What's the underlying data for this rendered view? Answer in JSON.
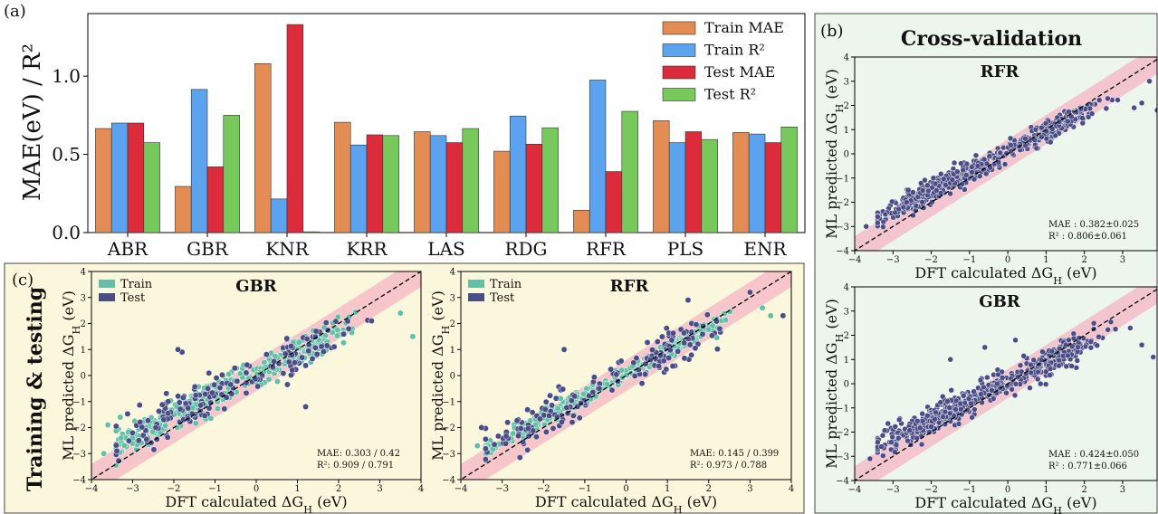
{
  "panels": {
    "a": {
      "label": "(a)",
      "chart_data": {
        "type": "bar",
        "ylabel": "MAE(eV) / R²",
        "ylim": [
          0.0,
          1.4
        ],
        "yticks": [
          "0.0",
          "0.5",
          "1.0"
        ],
        "categories": [
          "ABR",
          "GBR",
          "KNR",
          "KRR",
          "LAS",
          "RDG",
          "RFR",
          "PLS",
          "ENR"
        ],
        "series": [
          {
            "name": "Train MAE",
            "color": "#e38c54",
            "values": [
              0.665,
              0.295,
              1.08,
              0.705,
              0.645,
              0.52,
              0.143,
              0.715,
              0.64
            ]
          },
          {
            "name": "Train R²",
            "color": "#5ba3ee",
            "values": [
              0.7,
              0.915,
              0.215,
              0.56,
              0.62,
              0.745,
              0.975,
              0.575,
              0.63
            ]
          },
          {
            "name": "Test MAE",
            "color": "#dc2b3b",
            "values": [
              0.7,
              0.42,
              1.33,
              0.625,
              0.575,
              0.565,
              0.39,
              0.645,
              0.575
            ]
          },
          {
            "name": "Test R²",
            "color": "#78c95b",
            "values": [
              0.575,
              0.75,
              0.005,
              0.62,
              0.665,
              0.67,
              0.775,
              0.595,
              0.675
            ]
          }
        ],
        "legend_position": "top-right",
        "grid": false
      }
    },
    "b": {
      "label": "(b)",
      "title": "Cross-validation",
      "background": "#edf6ec",
      "subplots": [
        {
          "title": "RFR",
          "xlabel": "DFT calculated ΔG",
          "xlabel_sub": "H",
          "xlabel_tail": " (eV)",
          "ylabel": "ML predicted ΔG",
          "ylabel_sub": "H",
          "ylabel_tail": " (eV)",
          "mae_text": "MAE : 0.382±0.025",
          "r2_text": "R² : 0.806±0.061",
          "chart_data": {
            "type": "scatter",
            "xlim": [
              -4,
              3.9
            ],
            "ylim": [
              -4,
              4
            ],
            "xticks": [
              "-4",
              "-3",
              "-2",
              "-1",
              "0",
              "1",
              "2",
              "3"
            ],
            "yticks": [
              "-4",
              "-3",
              "-2",
              "-1",
              "0",
              "1",
              "2",
              "3",
              "4"
            ],
            "series": [
              {
                "color": "#4b4e86",
                "seed": 11,
                "n": 520,
                "slope": 0.81,
                "noise": 0.22,
                "outliers": [
                  [
                    -3.7,
                    -3.0
                  ],
                  [
                    -3.2,
                    -2.5
                  ],
                  [
                    -2.6,
                    -1.5
                  ],
                  [
                    -2.1,
                    -1.3
                  ],
                  [
                    3.5,
                    2.1
                  ],
                  [
                    3.7,
                    3.0
                  ],
                  [
                    3.9,
                    1.8
                  ],
                  [
                    3.3,
                    1.9
                  ]
                ]
              }
            ],
            "band_width": 0.6,
            "diagonal": true
          }
        },
        {
          "title": "GBR",
          "xlabel": "DFT calculated ΔG",
          "xlabel_sub": "H",
          "xlabel_tail": " (eV)",
          "ylabel": "ML predicted ΔG",
          "ylabel_sub": "H",
          "ylabel_tail": " (eV)",
          "mae_text": "MAE : 0.424±0.050",
          "r2_text": "R² : 0.771±0.066",
          "chart_data": {
            "type": "scatter",
            "xlim": [
              -4,
              3.9
            ],
            "ylim": [
              -4,
              4
            ],
            "xticks": [
              "-4",
              "-3",
              "-2",
              "-1",
              "0",
              "1",
              "2",
              "3"
            ],
            "yticks": [
              "-4",
              "-3",
              "-2",
              "-1",
              "0",
              "1",
              "2",
              "3",
              "4"
            ],
            "series": [
              {
                "color": "#4b4e86",
                "seed": 23,
                "n": 560,
                "slope": 0.78,
                "noise": 0.28,
                "outliers": [
                  [
                    -3.6,
                    -3.1
                  ],
                  [
                    -3.3,
                    -2.6
                  ],
                  [
                    -1.5,
                    1.0
                  ],
                  [
                    -0.6,
                    1.5
                  ],
                  [
                    3.5,
                    1.6
                  ],
                  [
                    3.8,
                    1.1
                  ],
                  [
                    3.2,
                    2.3
                  ],
                  [
                    0.2,
                    1.8
                  ]
                ]
              }
            ],
            "band_width": 0.6,
            "diagonal": true
          }
        }
      ]
    },
    "c": {
      "label": "(c)",
      "side_title": "Training & testing",
      "background": "#fbf7dc",
      "subplots": [
        {
          "title": "GBR",
          "xlabel": "DFT calculated ΔG",
          "xlabel_sub": "H",
          "xlabel_tail": " (eV)",
          "ylabel": "ML predicted ΔG",
          "ylabel_sub": "H",
          "ylabel_tail": " (eV)",
          "mae_text": "MAE: 0.303 / 0.42",
          "r2_text": "R²: 0.909 / 0.791",
          "legend": [
            {
              "name": "Train",
              "color": "#63c0a6"
            },
            {
              "name": "Test",
              "color": "#4b4e86"
            }
          ],
          "chart_data": {
            "type": "scatter",
            "xlim": [
              -4,
              4
            ],
            "ylim": [
              -4,
              4
            ],
            "xticks": [
              "-4",
              "-3",
              "-2",
              "-1",
              "0",
              "1",
              "2",
              "3",
              "4"
            ],
            "yticks": [
              "-4",
              "-3",
              "-2",
              "-1",
              "0",
              "1",
              "2",
              "3",
              "4"
            ],
            "series": [
              {
                "name": "Train",
                "color": "#63c0a6",
                "seed": 31,
                "n": 360,
                "slope": 0.8,
                "noise": 0.28,
                "outliers": [
                  [
                    -3.6,
                    -1.9
                  ],
                  [
                    -3.3,
                    -1.6
                  ],
                  [
                    -3.0,
                    -2.4
                  ],
                  [
                    -3.7,
                    -3.0
                  ],
                  [
                    3.5,
                    2.4
                  ],
                  [
                    3.8,
                    1.5
                  ]
                ]
              },
              {
                "name": "Test",
                "color": "#4b4e86",
                "seed": 37,
                "n": 170,
                "slope": 0.82,
                "noise": 0.42,
                "outliers": [
                  [
                    -1.8,
                    0.9
                  ],
                  [
                    -1.9,
                    1.0
                  ],
                  [
                    1.2,
                    -1.2
                  ],
                  [
                    2.8,
                    2.1
                  ]
                ]
              }
            ],
            "band_width": 0.6,
            "diagonal": true
          }
        },
        {
          "title": "RFR",
          "xlabel": "DFT calculated ΔG",
          "xlabel_sub": "H",
          "xlabel_tail": " (eV)",
          "ylabel": "ML predicted ΔG",
          "ylabel_sub": "H",
          "ylabel_tail": " (eV)",
          "mae_text": "MAE: 0.145 / 0.399",
          "r2_text": "R²: 0.973 / 0.788",
          "legend": [
            {
              "name": "Train",
              "color": "#63c0a6"
            },
            {
              "name": "Test",
              "color": "#4b4e86"
            }
          ],
          "chart_data": {
            "type": "scatter",
            "xlim": [
              -4,
              4
            ],
            "ylim": [
              -4,
              4
            ],
            "xticks": [
              "-4",
              "-3",
              "-2",
              "-1",
              "0",
              "1",
              "2",
              "3",
              "4"
            ],
            "yticks": [
              "-4",
              "-3",
              "-2",
              "-1",
              "0",
              "1",
              "2",
              "3",
              "4"
            ],
            "series": [
              {
                "name": "Train",
                "color": "#63c0a6",
                "seed": 41,
                "n": 360,
                "slope": 0.86,
                "noise": 0.16,
                "outliers": [
                  [
                    -3.6,
                    -2.7
                  ],
                  [
                    -3.4,
                    -2.8
                  ],
                  [
                    -3.0,
                    -2.4
                  ],
                  [
                    3.5,
                    2.3
                  ],
                  [
                    3.3,
                    2.6
                  ]
                ]
              },
              {
                "name": "Test",
                "color": "#4b4e86",
                "seed": 47,
                "n": 170,
                "slope": 0.84,
                "noise": 0.4,
                "outliers": [
                  [
                    -3.5,
                    -2.0
                  ],
                  [
                    -1.5,
                    1.0
                  ],
                  [
                    3.0,
                    3.2
                  ],
                  [
                    3.8,
                    2.3
                  ],
                  [
                    1.5,
                    2.9
                  ]
                ]
              }
            ],
            "band_width": 0.6,
            "diagonal": true
          }
        }
      ]
    }
  }
}
